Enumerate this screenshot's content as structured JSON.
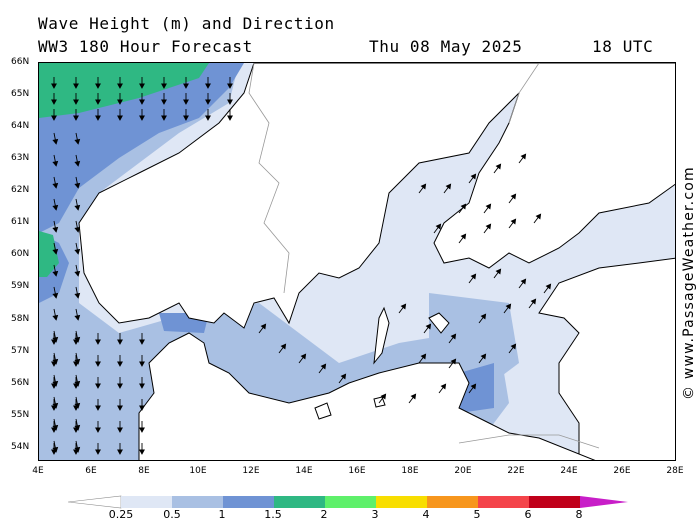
{
  "header": {
    "title": "Wave Height (m) and Direction",
    "model": "WW3 180 Hour Forecast",
    "date": "Thu 08 May 2025",
    "time": "18 UTC"
  },
  "credit": "© www.PassageWeather.com",
  "lat_labels": [
    "66N",
    "65N",
    "64N",
    "63N",
    "62N",
    "61N",
    "60N",
    "59N",
    "58N",
    "57N",
    "56N",
    "55N",
    "54N"
  ],
  "lon_labels": [
    "4E",
    "6E",
    "8E",
    "10E",
    "12E",
    "14E",
    "16E",
    "18E",
    "20E",
    "22E",
    "24E",
    "26E",
    "28E"
  ],
  "legend": {
    "labels": [
      "0.25",
      "0.5",
      "1",
      "1.5",
      "2",
      "3",
      "4",
      "5",
      "6",
      "8"
    ],
    "colors": [
      "#ffffff",
      "#dfe7f5",
      "#a9c0e3",
      "#6f93d4",
      "#2fb883",
      "#5ff06b",
      "#f8de00",
      "#f7961d",
      "#f4444a",
      "#c0001a",
      "#c81ec8"
    ]
  },
  "colors": {
    "land": "#ffffff",
    "sea_low": "#dfe7f5",
    "sea_mid": "#a9c0e3",
    "sea_high": "#6f93d4",
    "sea_higher": "#2fb883"
  }
}
